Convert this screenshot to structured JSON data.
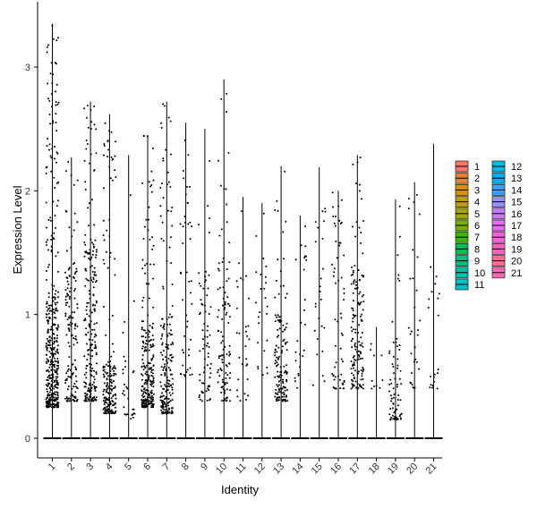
{
  "chart_data": {
    "type": "violin",
    "xlabel": "Identity",
    "ylabel": "Expression Level",
    "ylim": [
      -0.15,
      3.5
    ],
    "yticks": [
      0,
      1,
      2,
      3
    ],
    "categories": [
      "1",
      "2",
      "3",
      "4",
      "5",
      "6",
      "7",
      "8",
      "9",
      "10",
      "11",
      "12",
      "13",
      "14",
      "15",
      "16",
      "17",
      "18",
      "19",
      "20",
      "21"
    ],
    "max_values": [
      3.35,
      2.27,
      2.72,
      2.62,
      2.29,
      2.45,
      2.72,
      2.55,
      2.5,
      2.9,
      1.95,
      1.9,
      2.2,
      1.8,
      2.19,
      2.0,
      2.29,
      0.9,
      1.93,
      2.07,
      2.38
    ],
    "points_per_cluster": [
      420,
      160,
      230,
      190,
      30,
      250,
      200,
      45,
      70,
      110,
      30,
      25,
      140,
      25,
      25,
      60,
      150,
      10,
      70,
      30,
      20
    ],
    "cluster_spread": [
      [
        0.25,
        1.2
      ],
      [
        0.3,
        1.4
      ],
      [
        0.3,
        1.6
      ],
      [
        0.2,
        0.6
      ],
      [
        0.15,
        0.6
      ],
      [
        0.25,
        0.9
      ],
      [
        0.2,
        1.0
      ],
      [
        0.5,
        2.5
      ],
      [
        0.3,
        1.4
      ],
      [
        0.3,
        1.5
      ],
      [
        0.3,
        1.5
      ],
      [
        0.5,
        1.6
      ],
      [
        0.3,
        1.0
      ],
      [
        0.4,
        1.6
      ],
      [
        0.4,
        1.9
      ],
      [
        0.4,
        1.9
      ],
      [
        0.4,
        1.4
      ],
      [
        0.4,
        0.9
      ],
      [
        0.15,
        0.9
      ],
      [
        0.4,
        2.0
      ],
      [
        0.4,
        1.5
      ]
    ],
    "legend": {
      "placement": "right",
      "columns": 2,
      "entries": [
        "1",
        "2",
        "3",
        "4",
        "5",
        "6",
        "7",
        "8",
        "9",
        "10",
        "11",
        "12",
        "13",
        "14",
        "15",
        "16",
        "17",
        "18",
        "19",
        "20",
        "21"
      ],
      "colors": [
        "#F8766D",
        "#EA8331",
        "#D89000",
        "#C09B00",
        "#A3A500",
        "#7CAE00",
        "#39B600",
        "#00BB4E",
        "#00BF7D",
        "#00C1A3",
        "#00BFC4",
        "#00BAE0",
        "#00B0F6",
        "#35A2FF",
        "#9590FF",
        "#C77CFF",
        "#E76BF3",
        "#FA62DB",
        "#FF62BC",
        "#FF6C91",
        "#FF69B4"
      ]
    }
  }
}
